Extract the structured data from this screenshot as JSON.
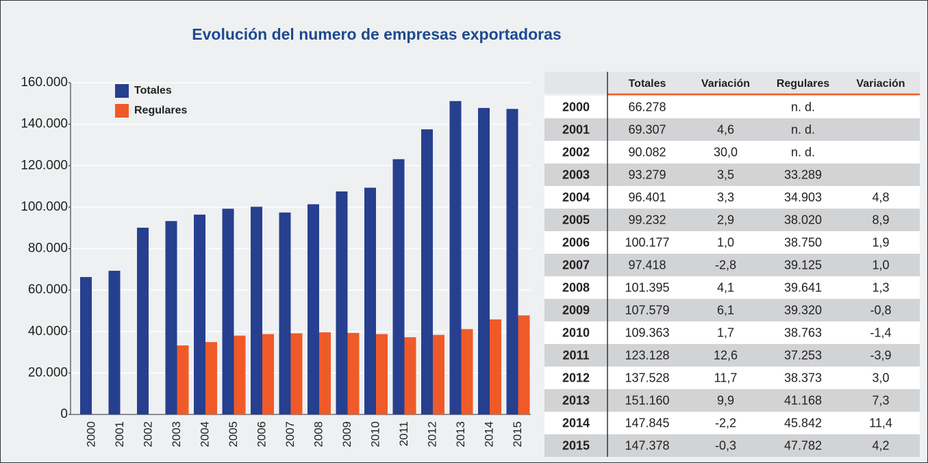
{
  "chart_data": {
    "type": "bar",
    "title": "Evolución del numero de empresas exportadoras",
    "categories": [
      "2000",
      "2001",
      "2002",
      "2003",
      "2004",
      "2005",
      "2006",
      "2007",
      "2008",
      "2009",
      "2010",
      "2011",
      "2012",
      "2013",
      "2014",
      "2015"
    ],
    "series": [
      {
        "name": "Totales",
        "color": "#263f8f",
        "values": [
          66278,
          69307,
          90082,
          93279,
          96401,
          99232,
          100177,
          97418,
          101395,
          107579,
          109363,
          123128,
          137528,
          151160,
          147845,
          147378
        ]
      },
      {
        "name": "Regulares",
        "color": "#f05a28",
        "values": [
          null,
          null,
          null,
          33289,
          34903,
          38020,
          38750,
          39125,
          39641,
          39320,
          38763,
          37253,
          38373,
          41168,
          45842,
          47782
        ]
      }
    ],
    "ylim": [
      0,
      160000
    ],
    "yticks": [
      0,
      {
        "value": 20000,
        "label": "20.000"
      },
      {
        "value": 40000,
        "label": "40.000"
      },
      {
        "value": 60000,
        "label": "60.000"
      },
      {
        "value": 80000,
        "label": "80.000"
      },
      {
        "value": 100000,
        "label": "100.000"
      },
      {
        "value": 120000,
        "label": "120.000"
      },
      {
        "value": 140000,
        "label": "140.000"
      },
      {
        "value": 160000,
        "label": "160.000"
      }
    ],
    "grid": true
  },
  "table": {
    "header": [
      "Totales",
      "Variación",
      "Regulares",
      "Variación"
    ],
    "rows": [
      [
        "2000",
        "66.278",
        null,
        "n. d.",
        null
      ],
      [
        "2001",
        "69.307",
        "4,6",
        "n. d.",
        null
      ],
      [
        "2002",
        "90.082",
        "30,0",
        "n. d.",
        null
      ],
      [
        "2003",
        "93.279",
        "3,5",
        "33.289",
        null
      ],
      [
        "2004",
        "96.401",
        "3,3",
        "34.903",
        "4,8"
      ],
      [
        "2005",
        "99.232",
        "2,9",
        "38.020",
        "8,9"
      ],
      [
        "2006",
        "100.177",
        "1,0",
        "38.750",
        "1,9"
      ],
      [
        "2007",
        "97.418",
        "-2,8",
        "39.125",
        "1,0"
      ],
      [
        "2008",
        "101.395",
        "4,1",
        "39.641",
        "1,3"
      ],
      [
        "2009",
        "107.579",
        "6,1",
        "39.320",
        "-0,8"
      ],
      [
        "2010",
        "109.363",
        "1,7",
        "38.763",
        "-1,4"
      ],
      [
        "2011",
        "123.128",
        "12,6",
        "37.253",
        "-3,9"
      ],
      [
        "2012",
        "137.528",
        "11,7",
        "38.373",
        "3,0"
      ],
      [
        "2013",
        "151.160",
        "9,9",
        "41.168",
        "7,3"
      ],
      [
        "2014",
        "147.845",
        "-2,2",
        "45.842",
        "11,4"
      ],
      [
        "2015",
        "147.378",
        "-0,3",
        "47.782",
        "4,2"
      ]
    ]
  }
}
